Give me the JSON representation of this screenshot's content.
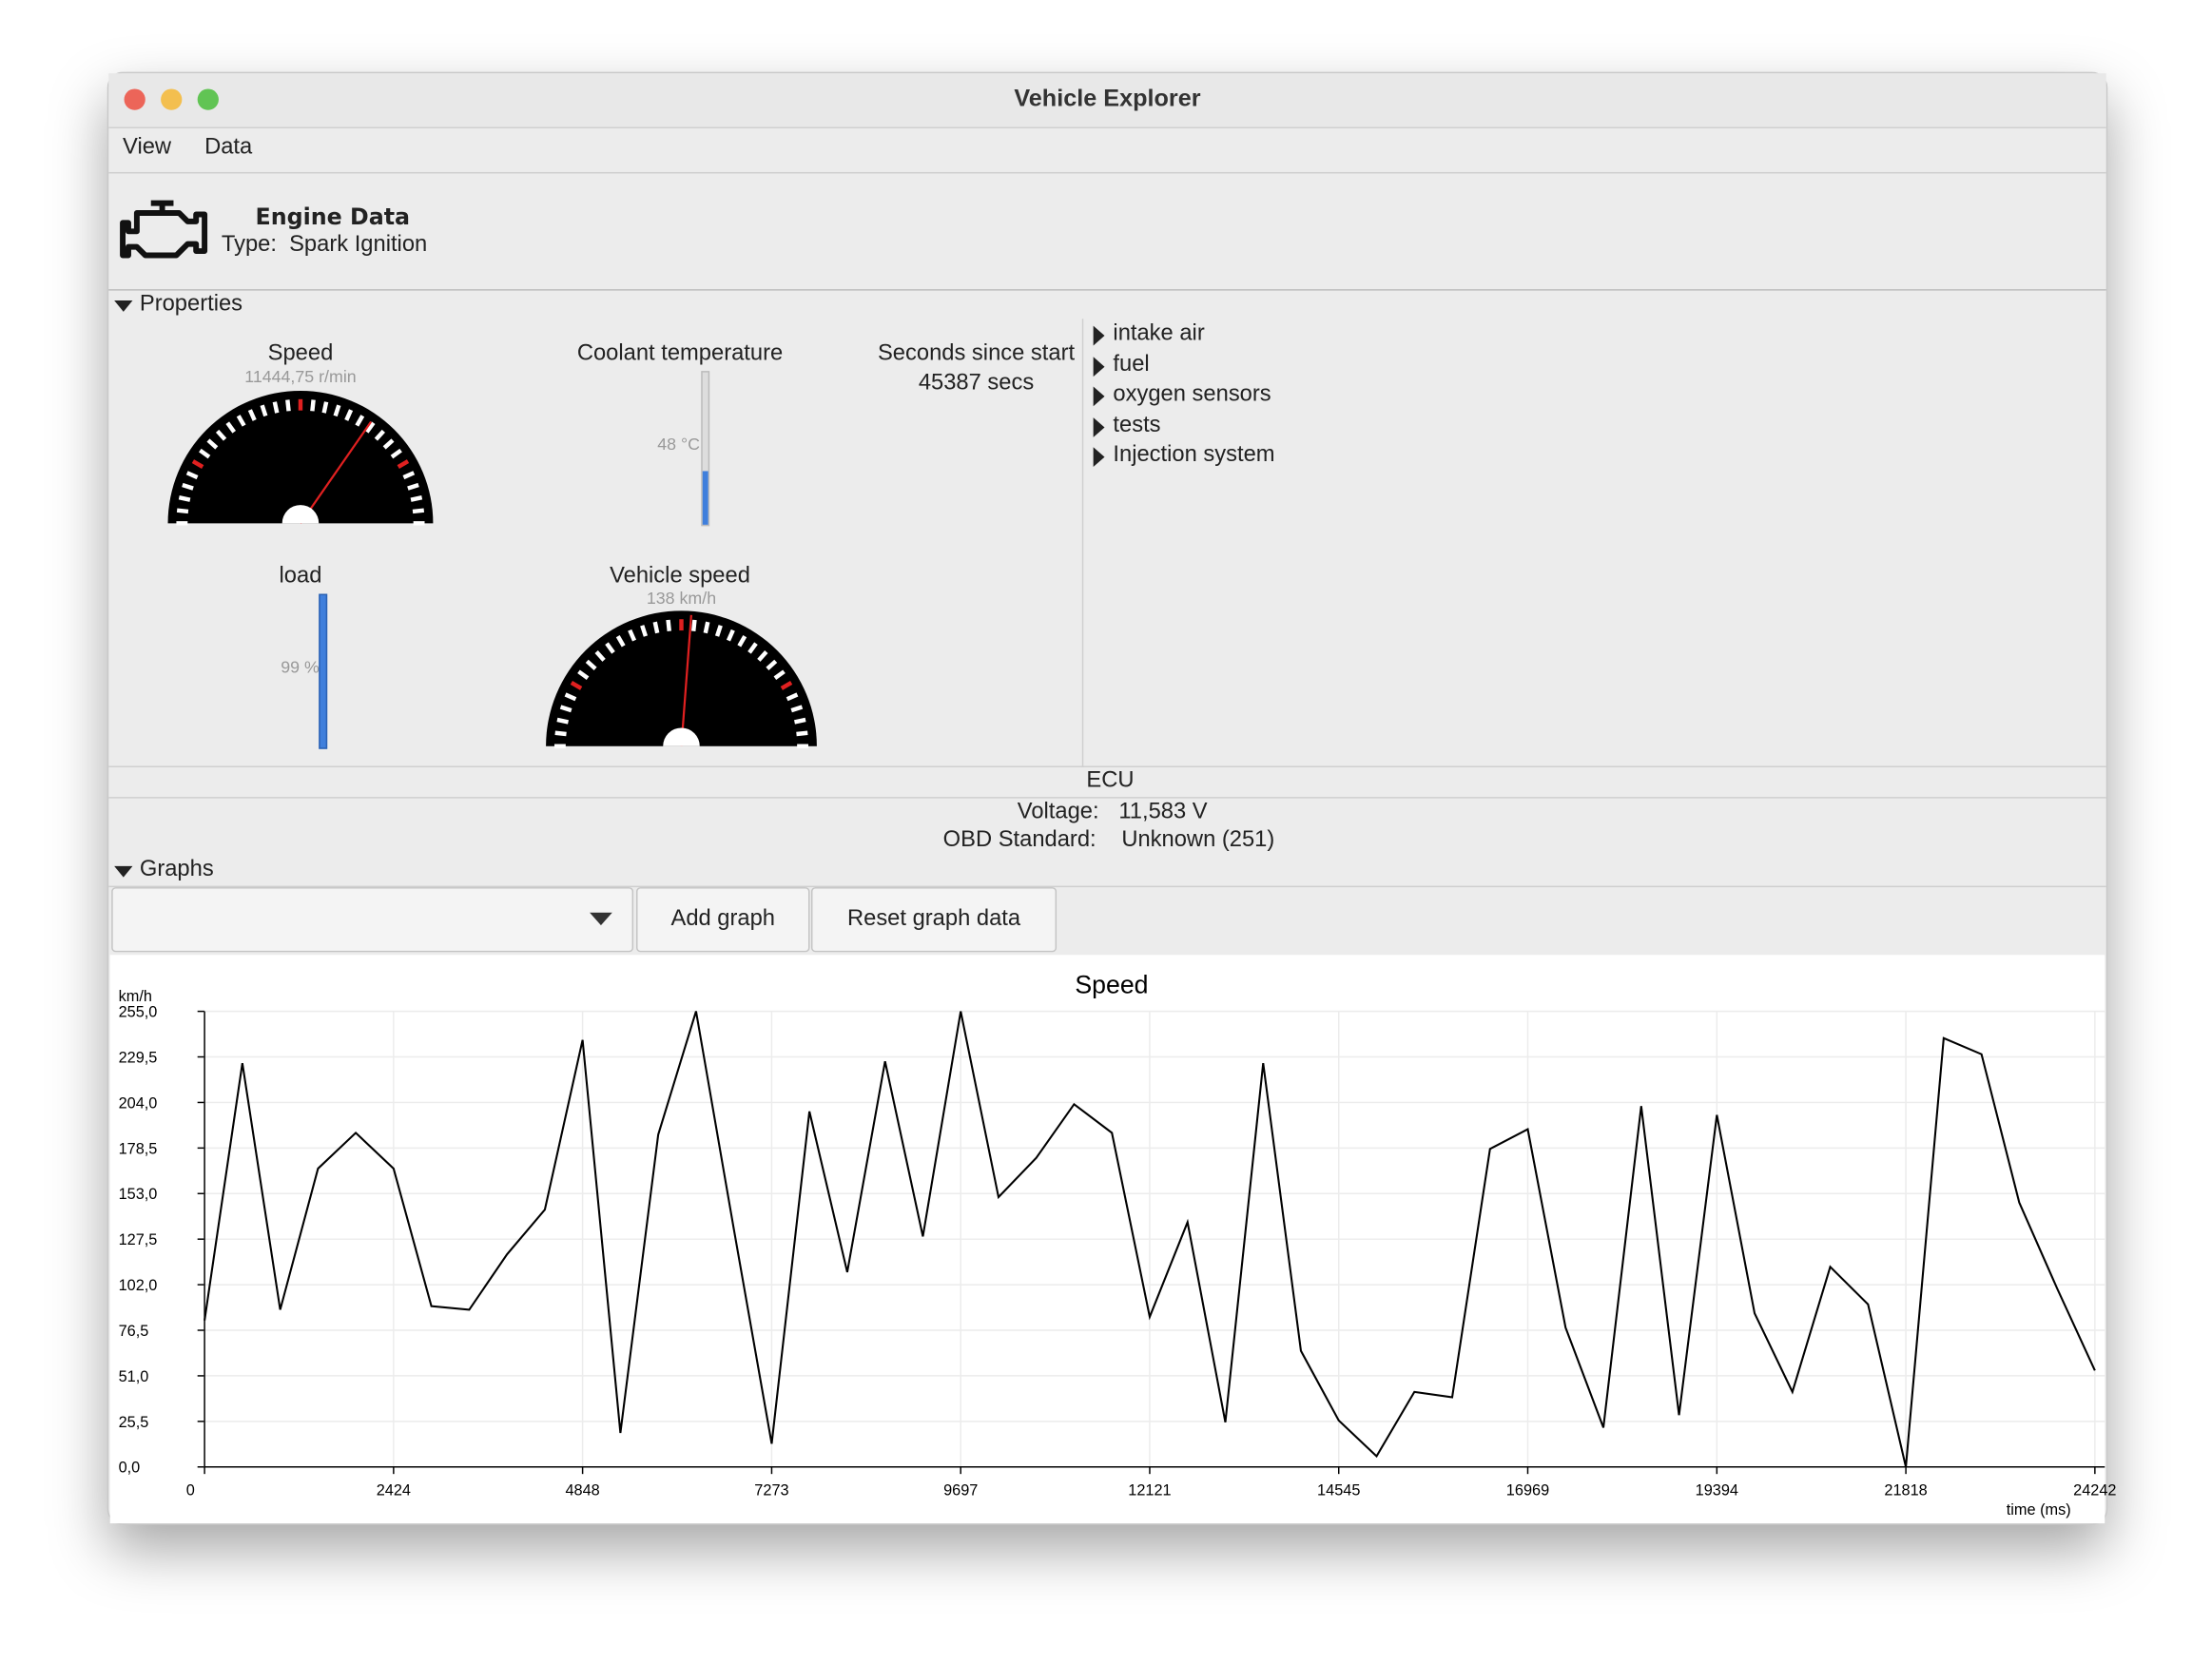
{
  "window": {
    "title": "Vehicle Explorer"
  },
  "menu": [
    "View",
    "Data"
  ],
  "header": {
    "title": "Engine Data",
    "type_label": "Type:",
    "type": "Spark Ignition"
  },
  "properties": {
    "title": "Properties",
    "gauges": [
      {
        "label": "Speed",
        "reading": "11444,75 r/min"
      },
      {
        "label": "Coolant temperature",
        "reading": "48 °C"
      },
      {
        "label": "load",
        "reading": "99 %"
      },
      {
        "label": "Vehicle speed",
        "reading": "138 km/h"
      }
    ],
    "seconds": {
      "label": "Seconds since start",
      "reading": "45387 secs"
    },
    "tree": [
      "intake air",
      "fuel",
      "oxygen sensors",
      "tests",
      "Injection system"
    ]
  },
  "ecu": {
    "title": "ECU",
    "fields": [
      {
        "label": "Voltage:",
        "value": "11,583 V"
      },
      {
        "label": "OBD Standard:",
        "value": "Unknown (251)"
      }
    ]
  },
  "graphs": {
    "title": "Graphs",
    "buttons": [
      "Add graph",
      "Reset graph data"
    ]
  },
  "chart_data": {
    "type": "line",
    "title": "Speed",
    "y_label": "km/h",
    "x_label": "time (ms)",
    "color": "#000000",
    "grid": true,
    "x": [
      0,
      485,
      970,
      1455,
      1939,
      2424,
      2909,
      3394,
      3879,
      4364,
      4848,
      5333,
      5818,
      6303,
      6788,
      7273,
      7757,
      8242,
      8727,
      9212,
      9697,
      10182,
      10666,
      11151,
      11636,
      12121,
      12606,
      13091,
      13576,
      14060,
      14545,
      15030,
      15515,
      16000,
      16485,
      16969,
      17454,
      17939,
      18424,
      18909,
      19394,
      19878,
      20363,
      20848,
      21333,
      21818,
      22303,
      22788,
      23272,
      23757,
      24242
    ],
    "values": [
      82,
      226,
      88,
      167,
      187,
      167,
      90,
      88,
      119,
      144,
      239,
      19,
      186,
      255,
      133,
      13,
      199,
      109,
      227,
      129,
      255,
      151,
      173,
      203,
      187,
      84,
      137,
      25,
      226,
      65,
      26,
      6,
      42,
      39,
      178,
      189,
      78,
      22,
      202,
      29,
      197,
      86,
      42,
      112,
      91,
      0,
      240,
      231,
      148,
      100,
      54
    ],
    "xlim": [
      0,
      24369
    ],
    "ylim": [
      0,
      255
    ],
    "xticks": [
      0,
      2424,
      4848,
      7273,
      9697,
      12121,
      14545,
      16969,
      19394,
      21818,
      24242
    ],
    "yticks": [
      {
        "value": 0,
        "label": "0,0"
      },
      {
        "value": 25.5,
        "label": "25,5"
      },
      {
        "value": 51,
        "label": "51,0"
      },
      {
        "value": 76.5,
        "label": "76,5"
      },
      {
        "value": 102,
        "label": "102,0"
      },
      {
        "value": 127.5,
        "label": "127,5"
      },
      {
        "value": 153,
        "label": "153,0"
      },
      {
        "value": 178.5,
        "label": "178,5"
      },
      {
        "value": 204,
        "label": "204,0"
      },
      {
        "value": 229.5,
        "label": "229,5"
      },
      {
        "value": 255,
        "label": "255,0"
      }
    ]
  }
}
